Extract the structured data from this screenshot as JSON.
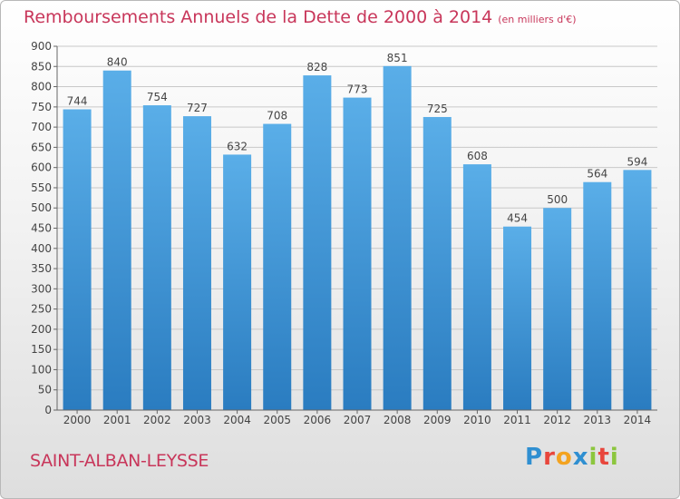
{
  "title": {
    "main": "Remboursements Annuels de la Dette de 2000 à 2014",
    "unit": "(en milliers d'€)"
  },
  "commune": "SAINT-ALBAN-LEYSSE",
  "logo": {
    "letters": [
      "P",
      "r",
      "o",
      "x",
      "i",
      "t",
      "i"
    ]
  },
  "colors": {
    "title": "#c8365a",
    "bar_top": "#5aaee8",
    "bar_bottom": "#2a7cc0",
    "grid": "#c8c8c8"
  },
  "chart_data": {
    "type": "bar",
    "categories": [
      "2000",
      "2001",
      "2002",
      "2003",
      "2004",
      "2005",
      "2006",
      "2007",
      "2008",
      "2009",
      "2010",
      "2011",
      "2012",
      "2013",
      "2014"
    ],
    "values": [
      744,
      840,
      754,
      727,
      632,
      708,
      828,
      773,
      851,
      725,
      608,
      454,
      500,
      564,
      594
    ],
    "ylim": [
      0,
      900
    ],
    "yticks": [
      0,
      50,
      100,
      150,
      200,
      250,
      300,
      350,
      400,
      450,
      500,
      550,
      600,
      650,
      700,
      750,
      800,
      850,
      900
    ],
    "grid": true,
    "legend": "none"
  }
}
